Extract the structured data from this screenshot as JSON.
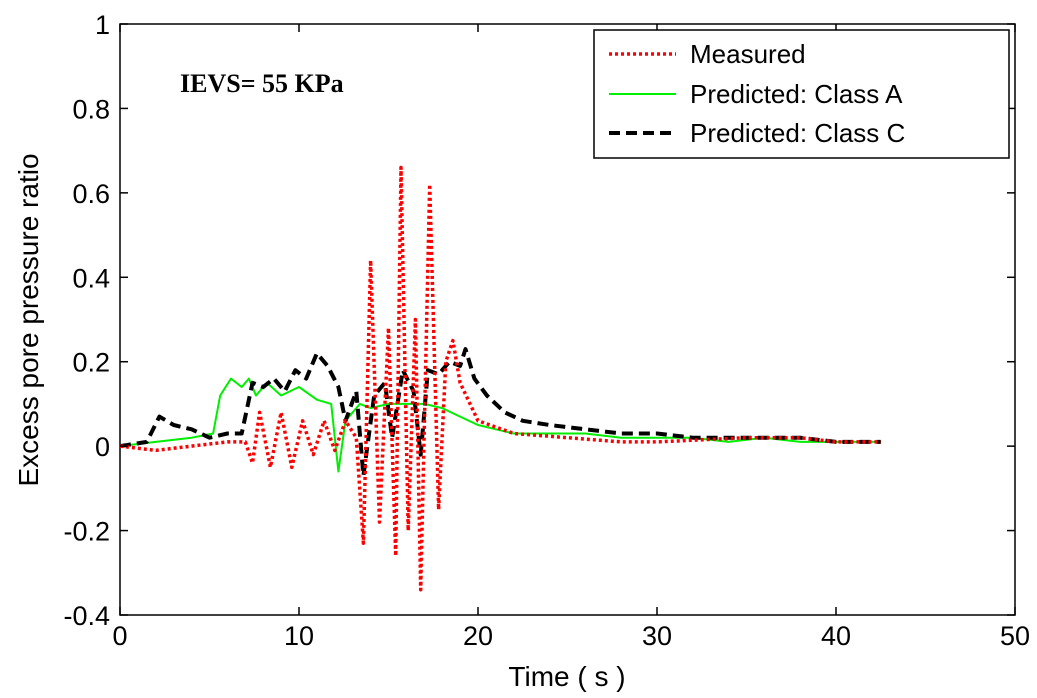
{
  "chart_data": {
    "type": "line",
    "title": "",
    "xlabel": "Time ( s )",
    "ylabel": "Excess pore pressure ratio",
    "xlim": [
      0,
      50
    ],
    "ylim": [
      -0.4,
      1
    ],
    "xticks": [
      0,
      10,
      20,
      30,
      40,
      50
    ],
    "yticks": [
      -0.4,
      -0.2,
      0,
      0.2,
      0.4,
      0.6,
      0.8,
      1
    ],
    "xtick_labels": [
      "0",
      "10",
      "20",
      "30",
      "40",
      "50"
    ],
    "ytick_labels": [
      "-0.4",
      "-0.2",
      "0",
      "0.2",
      "0.4",
      "0.6",
      "0.8",
      "1"
    ],
    "grid": false,
    "legend_position": "top-right",
    "annotation": "IEVS= 55 KPa",
    "series": [
      {
        "name": "Measured",
        "color": "#ff0000",
        "style": "dotted",
        "points": [
          [
            0,
            0
          ],
          [
            2,
            -0.01
          ],
          [
            4,
            0
          ],
          [
            6,
            0.01
          ],
          [
            7,
            0.01
          ],
          [
            7.4,
            -0.04
          ],
          [
            7.8,
            0.08
          ],
          [
            8.4,
            -0.05
          ],
          [
            9,
            0.08
          ],
          [
            9.6,
            -0.05
          ],
          [
            10.2,
            0.06
          ],
          [
            10.8,
            -0.02
          ],
          [
            11.4,
            0.06
          ],
          [
            12,
            -0.01
          ],
          [
            12.6,
            0.06
          ],
          [
            13.2,
            0.02
          ],
          [
            13.6,
            -0.23
          ],
          [
            14,
            0.44
          ],
          [
            14.5,
            -0.18
          ],
          [
            15,
            0.28
          ],
          [
            15.4,
            -0.26
          ],
          [
            15.7,
            0.66
          ],
          [
            16.1,
            -0.2
          ],
          [
            16.5,
            0.3
          ],
          [
            16.8,
            -0.34
          ],
          [
            17.3,
            0.62
          ],
          [
            17.8,
            -0.15
          ],
          [
            18.2,
            0.2
          ],
          [
            18.6,
            0.25
          ],
          [
            19,
            0.15
          ],
          [
            20,
            0.06
          ],
          [
            22,
            0.03
          ],
          [
            25,
            0.02
          ],
          [
            28,
            0.01
          ],
          [
            30,
            0.01
          ],
          [
            35,
            0.02
          ],
          [
            38,
            0.02
          ],
          [
            40,
            0.01
          ],
          [
            42,
            0.01
          ],
          [
            42.5,
            0.01
          ]
        ]
      },
      {
        "name": "Predicted: Class A",
        "color": "#00ee00",
        "style": "solid",
        "points": [
          [
            0,
            0
          ],
          [
            2,
            0.01
          ],
          [
            4,
            0.02
          ],
          [
            5.2,
            0.03
          ],
          [
            5.6,
            0.12
          ],
          [
            6.2,
            0.16
          ],
          [
            6.8,
            0.14
          ],
          [
            7.2,
            0.16
          ],
          [
            7.6,
            0.12
          ],
          [
            8.2,
            0.15
          ],
          [
            9,
            0.12
          ],
          [
            10,
            0.14
          ],
          [
            11,
            0.11
          ],
          [
            11.8,
            0.1
          ],
          [
            12.2,
            -0.06
          ],
          [
            12.6,
            0.06
          ],
          [
            13.4,
            0.1
          ],
          [
            14,
            0.09
          ],
          [
            15,
            0.1
          ],
          [
            16,
            0.1
          ],
          [
            17,
            0.1
          ],
          [
            18,
            0.09
          ],
          [
            19,
            0.07
          ],
          [
            20,
            0.05
          ],
          [
            21,
            0.04
          ],
          [
            22,
            0.03
          ],
          [
            24,
            0.03
          ],
          [
            26,
            0.03
          ],
          [
            28,
            0.02
          ],
          [
            30,
            0.02
          ],
          [
            32,
            0.02
          ],
          [
            34,
            0.01
          ],
          [
            36,
            0.02
          ],
          [
            38,
            0.01
          ],
          [
            40,
            0.01
          ],
          [
            42,
            0.01
          ],
          [
            42.5,
            0.01
          ]
        ]
      },
      {
        "name": "Predicted: Class C",
        "color": "#000000",
        "style": "dashed",
        "points": [
          [
            0,
            0
          ],
          [
            1.5,
            0.01
          ],
          [
            2.2,
            0.07
          ],
          [
            3,
            0.05
          ],
          [
            4,
            0.04
          ],
          [
            5,
            0.02
          ],
          [
            6,
            0.03
          ],
          [
            6.8,
            0.03
          ],
          [
            7.4,
            0.15
          ],
          [
            8,
            0.14
          ],
          [
            8.6,
            0.16
          ],
          [
            9.2,
            0.13
          ],
          [
            9.8,
            0.18
          ],
          [
            10.4,
            0.16
          ],
          [
            11,
            0.22
          ],
          [
            11.6,
            0.19
          ],
          [
            12.2,
            0.14
          ],
          [
            12.6,
            0.06
          ],
          [
            13.2,
            0.13
          ],
          [
            13.6,
            -0.07
          ],
          [
            14.2,
            0.12
          ],
          [
            14.8,
            0.15
          ],
          [
            15.2,
            0.02
          ],
          [
            15.8,
            0.18
          ],
          [
            16.4,
            0.13
          ],
          [
            16.8,
            -0.02
          ],
          [
            17.2,
            0.18
          ],
          [
            17.8,
            0.17
          ],
          [
            18.4,
            0.2
          ],
          [
            19,
            0.19
          ],
          [
            19.3,
            0.23
          ],
          [
            19.8,
            0.16
          ],
          [
            20.5,
            0.12
          ],
          [
            21.5,
            0.08
          ],
          [
            22.5,
            0.06
          ],
          [
            24,
            0.05
          ],
          [
            26,
            0.04
          ],
          [
            28,
            0.03
          ],
          [
            30,
            0.03
          ],
          [
            32,
            0.02
          ],
          [
            34,
            0.02
          ],
          [
            36,
            0.02
          ],
          [
            38,
            0.02
          ],
          [
            40,
            0.01
          ],
          [
            42,
            0.01
          ],
          [
            42.5,
            0.01
          ]
        ]
      }
    ]
  }
}
